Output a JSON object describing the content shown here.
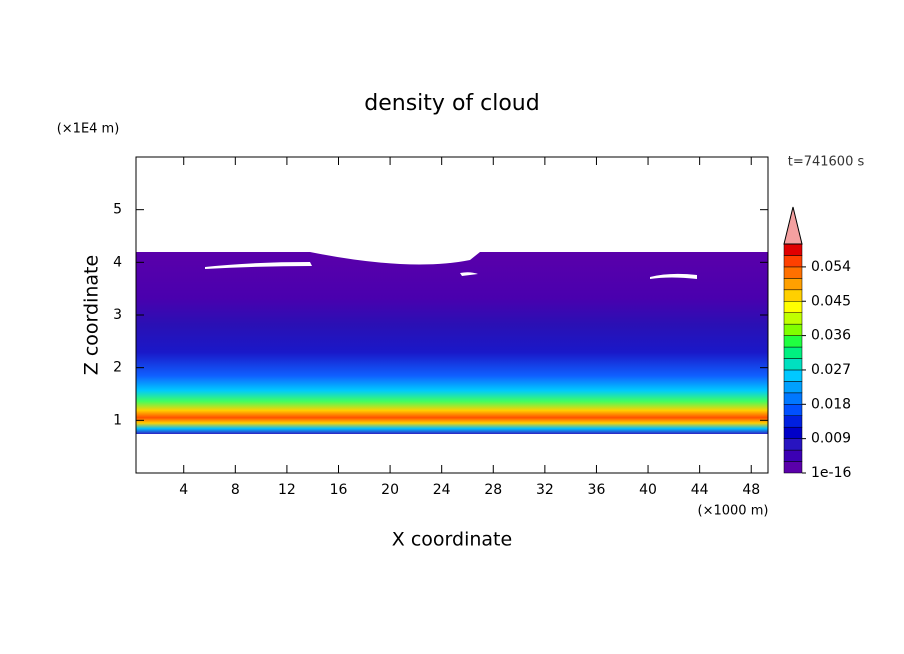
{
  "chart_data": {
    "type": "contour",
    "title": "density of cloud",
    "x_label": "X coordinate",
    "y_label": "Z coordinate",
    "x_unit": "(×1000 m)",
    "y_unit": "(×1E4 m)",
    "annotation": "t=741600 s",
    "xlim": [
      0.3,
      49.3
    ],
    "xticks": [
      4,
      8,
      12,
      16,
      20,
      24,
      28,
      32,
      36,
      40,
      44,
      48
    ],
    "ylim": [
      0,
      6
    ],
    "yticks": [
      1,
      2,
      3,
      4,
      5
    ],
    "colorbar": {
      "lim": [
        0,
        0.06
      ],
      "ticks": [
        {
          "value": 1e-16,
          "label": "1e-16"
        },
        0.009,
        0.018,
        0.027,
        0.036,
        0.045,
        0.054
      ],
      "colors": [
        "#5a00aa",
        "#3c00b4",
        "#2814c0",
        "#0000c8",
        "#0020e0",
        "#0050ff",
        "#0078ff",
        "#00a0ff",
        "#00c8ff",
        "#00e0c0",
        "#00f080",
        "#20ff40",
        "#80ff00",
        "#c0ff00",
        "#ffff00",
        "#ffd000",
        "#ffa000",
        "#ff7000",
        "#ff4000",
        "#e00000"
      ],
      "extend_color": "#f4a0a0"
    }
  }
}
